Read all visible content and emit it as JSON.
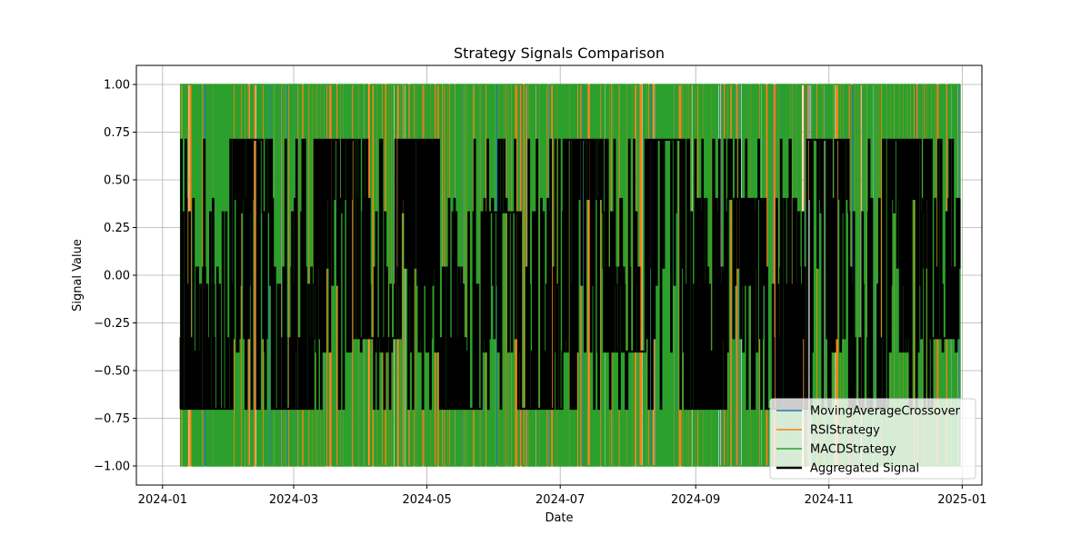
{
  "chart_data": {
    "type": "line",
    "title": "Strategy Signals Comparison",
    "xlabel": "Date",
    "ylabel": "Signal Value",
    "x_range": [
      "2023-12-20",
      "2025-01-10"
    ],
    "data_range": [
      "2024-01-09",
      "2024-12-31"
    ],
    "ylim": [
      -1.1,
      1.1
    ],
    "yticks": [
      -1.0,
      -0.75,
      -0.5,
      -0.25,
      0.0,
      0.25,
      0.5,
      0.75,
      1.0
    ],
    "ytick_labels": [
      "−1.00",
      "−0.75",
      "−0.50",
      "−0.25",
      "0.00",
      "0.25",
      "0.50",
      "0.75",
      "1.00"
    ],
    "xticks": [
      "2024-01-01",
      "2024-03-01",
      "2024-05-01",
      "2024-07-01",
      "2024-09-01",
      "2024-11-01",
      "2025-01-01"
    ],
    "xtick_labels": [
      "2024-01",
      "2024-03",
      "2024-05",
      "2024-07",
      "2024-09",
      "2024-11",
      "2025-01"
    ],
    "grid": true,
    "legend_position": "lower-right",
    "series": [
      {
        "name": "MovingAverageCrossover",
        "color": "#1f77b4",
        "levels": [
          -1,
          1
        ],
        "segments": [
          [
            "2024-01-09",
            -1
          ],
          [
            "2024-01-18",
            1
          ],
          [
            "2024-02-05",
            -1
          ],
          [
            "2024-02-22",
            1
          ],
          [
            "2024-03-12",
            -1
          ],
          [
            "2024-04-01",
            1
          ],
          [
            "2024-04-19",
            -1
          ],
          [
            "2024-05-08",
            1
          ],
          [
            "2024-05-27",
            -1
          ],
          [
            "2024-06-14",
            1
          ],
          [
            "2024-07-03",
            -1
          ],
          [
            "2024-07-22",
            1
          ],
          [
            "2024-08-09",
            -1
          ],
          [
            "2024-08-28",
            1
          ],
          [
            "2024-09-16",
            -1
          ],
          [
            "2024-10-04",
            1
          ],
          [
            "2024-10-23",
            -1
          ],
          [
            "2024-11-11",
            1
          ],
          [
            "2024-11-29",
            -1
          ],
          [
            "2024-12-18",
            1
          ],
          [
            "2024-12-31",
            -1
          ]
        ]
      },
      {
        "name": "RSIStrategy",
        "color": "#ff7f0e",
        "levels": [
          -1,
          1
        ],
        "segments": [
          [
            "2024-01-09",
            1
          ],
          [
            "2024-01-14",
            -1
          ],
          [
            "2024-01-24",
            1
          ],
          [
            "2024-02-11",
            -1
          ],
          [
            "2024-03-02",
            1
          ],
          [
            "2024-03-20",
            -1
          ],
          [
            "2024-04-10",
            1
          ],
          [
            "2024-04-30",
            -1
          ],
          [
            "2024-05-18",
            1
          ],
          [
            "2024-06-06",
            -1
          ],
          [
            "2024-06-27",
            1
          ],
          [
            "2024-07-15",
            -1
          ],
          [
            "2024-08-02",
            1
          ],
          [
            "2024-08-24",
            -1
          ],
          [
            "2024-09-12",
            1
          ],
          [
            "2024-09-29",
            -1
          ],
          [
            "2024-10-18",
            1
          ],
          [
            "2024-11-06",
            -1
          ],
          [
            "2024-11-25",
            1
          ],
          [
            "2024-12-12",
            -1
          ],
          [
            "2024-12-31",
            1
          ]
        ]
      },
      {
        "name": "MACDStrategy",
        "color": "#2ca02c",
        "levels": [
          -1,
          1
        ],
        "segments": [
          [
            "2024-01-09",
            1
          ],
          [
            "2024-01-12",
            -1
          ],
          [
            "2024-01-20",
            1
          ],
          [
            "2024-02-08",
            -1
          ],
          [
            "2024-02-28",
            1
          ],
          [
            "2024-03-17",
            -1
          ],
          [
            "2024-04-06",
            1
          ],
          [
            "2024-04-25",
            -1
          ],
          [
            "2024-05-13",
            1
          ],
          [
            "2024-06-02",
            -1
          ],
          [
            "2024-06-21",
            1
          ],
          [
            "2024-07-09",
            -1
          ],
          [
            "2024-07-29",
            1
          ],
          [
            "2024-08-17",
            -1
          ],
          [
            "2024-09-05",
            1
          ],
          [
            "2024-09-24",
            -1
          ],
          [
            "2024-10-12",
            1
          ],
          [
            "2024-10-31",
            -1
          ],
          [
            "2024-11-19",
            1
          ],
          [
            "2024-12-07",
            -1
          ],
          [
            "2024-12-31",
            1
          ]
        ]
      },
      {
        "name": "Aggregated Signal",
        "color": "#000000",
        "levels": [
          -0.7,
          -0.4,
          -0.33,
          -0.05,
          0.04,
          0.33,
          0.4,
          0.71
        ],
        "segments": [
          [
            "2024-01-09",
            -0.7
          ],
          [
            "2024-02-01",
            0.71
          ],
          [
            "2024-02-20",
            -0.7
          ],
          [
            "2024-03-10",
            0.71
          ],
          [
            "2024-03-30",
            -0.33
          ],
          [
            "2024-04-18",
            0.71
          ],
          [
            "2024-05-07",
            -0.7
          ],
          [
            "2024-05-26",
            0.33
          ],
          [
            "2024-06-13",
            -0.7
          ],
          [
            "2024-07-02",
            0.71
          ],
          [
            "2024-07-21",
            -0.4
          ],
          [
            "2024-08-09",
            0.71
          ],
          [
            "2024-08-27",
            -0.7
          ],
          [
            "2024-09-15",
            0.4
          ],
          [
            "2024-10-03",
            -0.7
          ],
          [
            "2024-10-22",
            0.71
          ],
          [
            "2024-11-10",
            -0.7
          ],
          [
            "2024-11-28",
            0.71
          ],
          [
            "2024-12-17",
            -0.33
          ],
          [
            "2024-12-31",
            0.71
          ]
        ]
      }
    ]
  }
}
